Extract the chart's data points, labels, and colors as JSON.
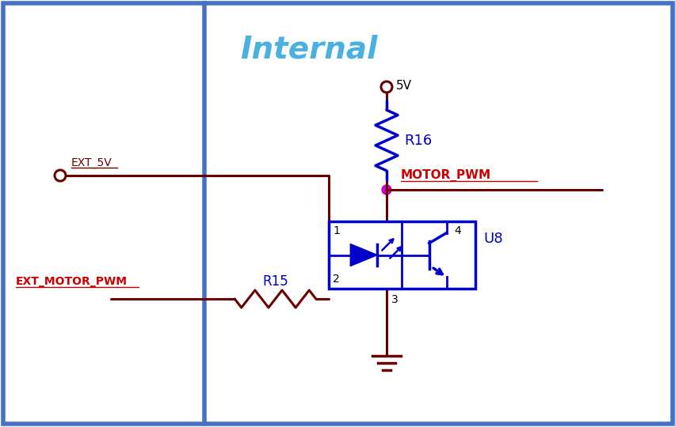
{
  "bg_color": "#ffffff",
  "border_color": "#4472c4",
  "internal_label": "Internal",
  "internal_label_color": "#4ab0e0",
  "wire_color": "#6B0000",
  "component_color": "#0000CC",
  "junction_color": "#cc00cc",
  "ext_5v_label": "EXT_5V",
  "v5_label": "5V",
  "r16_label": "R16",
  "r15_label": "R15",
  "u8_label": "U8",
  "motor_pwm_label": "MOTOR_PWM",
  "ext_motor_pwm_label": "EXT_MOTOR_PWM",
  "pin1_label": "1",
  "pin2_label": "2",
  "pin3_label": "3",
  "pin4_label": "4",
  "figw": 8.53,
  "figh": 5.4,
  "dpi": 100
}
